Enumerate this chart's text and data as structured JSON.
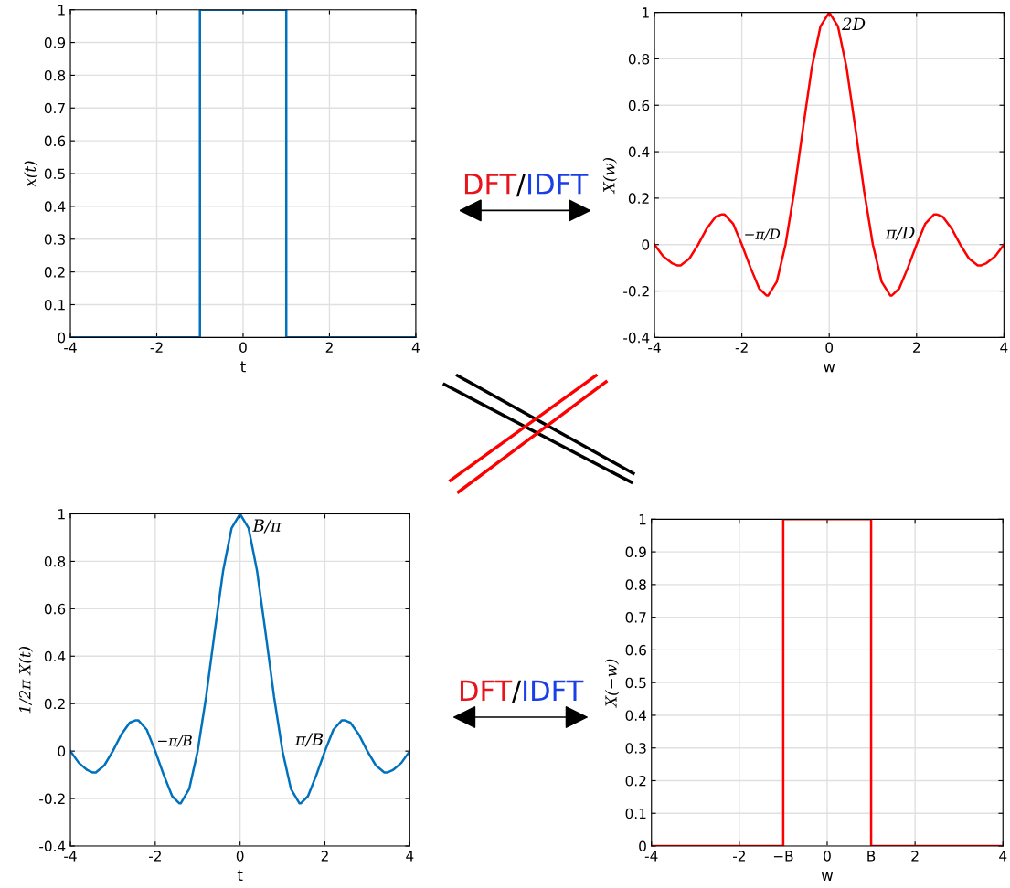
{
  "chart_data": [
    {
      "type": "line",
      "xlabel": "t",
      "ylabel": "x(t)",
      "xlim": [
        -4,
        4
      ],
      "xticks": [
        -4,
        -2,
        0,
        2,
        4
      ],
      "ylim": [
        0,
        1
      ],
      "yticks": [
        0,
        0.1,
        0.2,
        0.3,
        0.4,
        0.5,
        0.6,
        0.7,
        0.8,
        0.9,
        1
      ],
      "grid": true,
      "series": [
        {
          "color": "#0072bd",
          "x": [
            -4,
            -1,
            -1,
            1,
            1,
            4
          ],
          "values": [
            0,
            0,
            1,
            1,
            0,
            0
          ]
        }
      ],
      "annotations": [
        "DFT",
        "/",
        "IDFT"
      ]
    },
    {
      "type": "line",
      "xlabel": "w",
      "ylabel": "X(w)",
      "xlim": [
        -4,
        4
      ],
      "xticks": [
        -4,
        -2,
        0,
        2,
        4
      ],
      "ylim": [
        -0.4,
        1
      ],
      "yticks": [
        -0.4,
        -0.2,
        0,
        0.2,
        0.4,
        0.6,
        0.8,
        1
      ],
      "grid": true,
      "series": [
        {
          "color": "#ff0000",
          "x": [
            -4,
            -3.8,
            -3.6,
            -3.47,
            -3.4,
            -3.2,
            -3,
            -2.8,
            -2.6,
            -2.46,
            -2.4,
            -2.2,
            -2,
            -1.8,
            -1.6,
            -1.43,
            -1.4,
            -1.2,
            -1,
            -0.8,
            -0.6,
            -0.4,
            -0.2,
            0,
            0.2,
            0.4,
            0.6,
            0.8,
            1,
            1.2,
            1.4,
            1.43,
            1.6,
            1.8,
            2,
            2.2,
            2.4,
            2.46,
            2.6,
            2.8,
            3,
            3.2,
            3.4,
            3.47,
            3.6,
            3.8,
            4
          ],
          "values": [
            0,
            -0.05,
            -0.08,
            -0.09,
            -0.09,
            -0.06,
            0,
            0.07,
            0.12,
            0.13,
            0.13,
            0.09,
            0,
            -0.1,
            -0.19,
            -0.22,
            -0.22,
            -0.16,
            0,
            0.23,
            0.5,
            0.76,
            0.94,
            1,
            0.94,
            0.76,
            0.5,
            0.23,
            0,
            -0.16,
            -0.22,
            -0.22,
            -0.19,
            -0.1,
            0,
            0.09,
            0.13,
            0.13,
            0.12,
            0.07,
            0,
            -0.06,
            -0.09,
            -0.09,
            -0.08,
            -0.05,
            0
          ]
        }
      ],
      "annotations": [
        {
          "text": "2D",
          "x": 0,
          "y": 1
        },
        {
          "text": "−π/D",
          "x": -1,
          "y": 0
        },
        {
          "text": "π/D",
          "x": 1,
          "y": 0
        }
      ]
    },
    {
      "type": "line",
      "xlabel": "t",
      "ylabel": "1/2π X(t)",
      "xlim": [
        -4,
        4
      ],
      "xticks": [
        -4,
        -2,
        0,
        2,
        4
      ],
      "ylim": [
        -0.4,
        1
      ],
      "yticks": [
        -0.4,
        -0.2,
        0,
        0.2,
        0.4,
        0.6,
        0.8,
        1
      ],
      "grid": true,
      "series": [
        {
          "color": "#0072bd",
          "x": [
            -4,
            -3.8,
            -3.6,
            -3.47,
            -3.4,
            -3.2,
            -3,
            -2.8,
            -2.6,
            -2.46,
            -2.4,
            -2.2,
            -2,
            -1.8,
            -1.6,
            -1.43,
            -1.4,
            -1.2,
            -1,
            -0.8,
            -0.6,
            -0.4,
            -0.2,
            0,
            0.2,
            0.4,
            0.6,
            0.8,
            1,
            1.2,
            1.4,
            1.43,
            1.6,
            1.8,
            2,
            2.2,
            2.4,
            2.46,
            2.6,
            2.8,
            3,
            3.2,
            3.4,
            3.47,
            3.6,
            3.8,
            4
          ],
          "values": [
            0,
            -0.05,
            -0.08,
            -0.09,
            -0.09,
            -0.06,
            0,
            0.07,
            0.12,
            0.13,
            0.13,
            0.09,
            0,
            -0.1,
            -0.19,
            -0.22,
            -0.22,
            -0.16,
            0,
            0.23,
            0.5,
            0.76,
            0.94,
            1,
            0.94,
            0.76,
            0.5,
            0.23,
            0,
            -0.16,
            -0.22,
            -0.22,
            -0.19,
            -0.1,
            0,
            0.09,
            0.13,
            0.13,
            0.12,
            0.07,
            0,
            -0.06,
            -0.09,
            -0.09,
            -0.08,
            -0.05,
            0
          ]
        }
      ],
      "annotations": [
        {
          "text": "B/π",
          "x": 0,
          "y": 1
        },
        {
          "text": "−π/B",
          "x": -1,
          "y": 0
        },
        {
          "text": "π/B",
          "x": 1,
          "y": 0
        },
        "DFT",
        "/",
        "IDFT"
      ]
    },
    {
      "type": "line",
      "xlabel": "w",
      "ylabel": "X(−w)",
      "xlim": [
        -4,
        4
      ],
      "xticks": [
        -4,
        -2,
        {
          "value": -1,
          "label": "−B"
        },
        0,
        {
          "value": 1,
          "label": "B"
        },
        2,
        4
      ],
      "ylim": [
        0,
        1
      ],
      "yticks": [
        0,
        0.1,
        0.2,
        0.3,
        0.4,
        0.5,
        0.6,
        0.7,
        0.8,
        0.9,
        1
      ],
      "grid": true,
      "series": [
        {
          "color": "#ff0000",
          "x": [
            -4,
            -1,
            -1,
            1,
            1,
            4
          ],
          "values": [
            0,
            0,
            1,
            1,
            0,
            0
          ]
        }
      ]
    }
  ]
}
